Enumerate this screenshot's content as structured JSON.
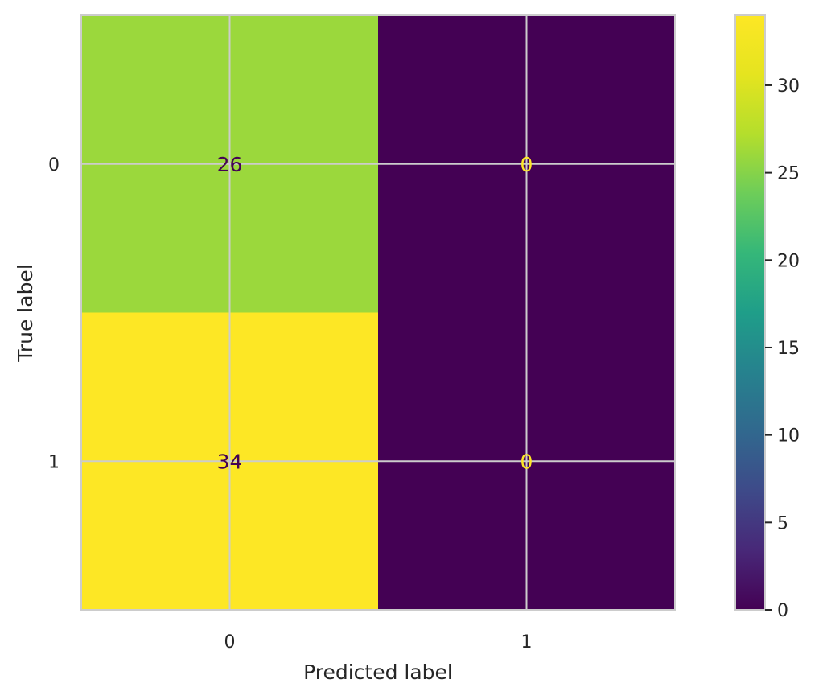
{
  "chart_data": {
    "type": "heatmap",
    "title": "",
    "xlabel": "Predicted label",
    "ylabel": "True label",
    "x_categories": [
      "0",
      "1"
    ],
    "y_categories": [
      "0",
      "1"
    ],
    "values": [
      [
        26,
        0
      ],
      [
        34,
        0
      ]
    ],
    "colormap": "viridis",
    "color_range": [
      0,
      34
    ],
    "colorbar_ticks": [
      0,
      5,
      10,
      15,
      20,
      25,
      30
    ],
    "colorbar_tick_labels": [
      "0",
      "5",
      "10",
      "15",
      "20",
      "25",
      "30"
    ],
    "grid": true,
    "colors": {
      "text_on_light": "#440154",
      "text_on_dark": "#fde725",
      "grid": "#cccccc",
      "frame": "#cccccc",
      "tick_text": "#262626"
    }
  }
}
